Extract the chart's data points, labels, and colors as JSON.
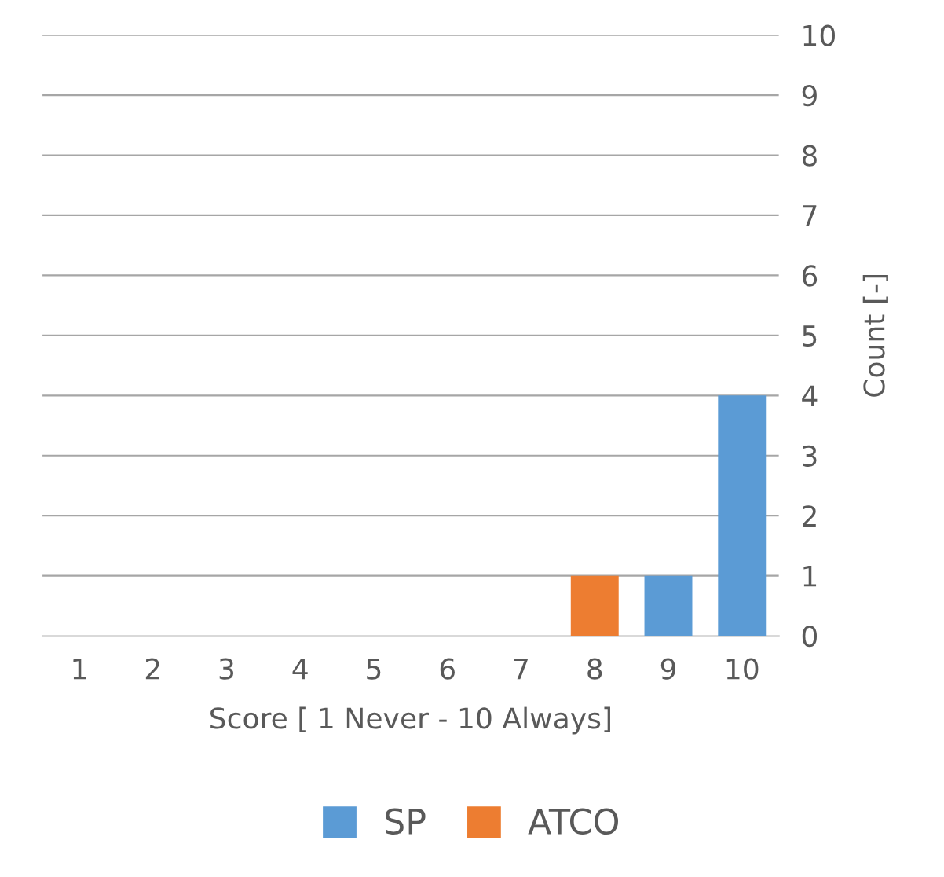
{
  "chart_data": {
    "type": "bar",
    "xlabel": "Score [ 1 Never - 10 Always]",
    "ylabel": "Count [-]",
    "categories": [
      "1",
      "2",
      "3",
      "4",
      "5",
      "6",
      "7",
      "8",
      "9",
      "10"
    ],
    "series": [
      {
        "name": "SP",
        "color": "#5b9bd5",
        "values": [
          0,
          0,
          0,
          0,
          0,
          0,
          0,
          0,
          1,
          4
        ]
      },
      {
        "name": "ATCO",
        "color": "#ed7d31",
        "values": [
          0,
          0,
          0,
          0,
          0,
          0,
          0,
          1,
          0,
          0
        ]
      }
    ],
    "ylim": [
      0,
      10
    ],
    "yticks": [
      0,
      1,
      2,
      3,
      4,
      5,
      6,
      7,
      8,
      9,
      10
    ],
    "grid": "y",
    "legend": "bottom"
  }
}
